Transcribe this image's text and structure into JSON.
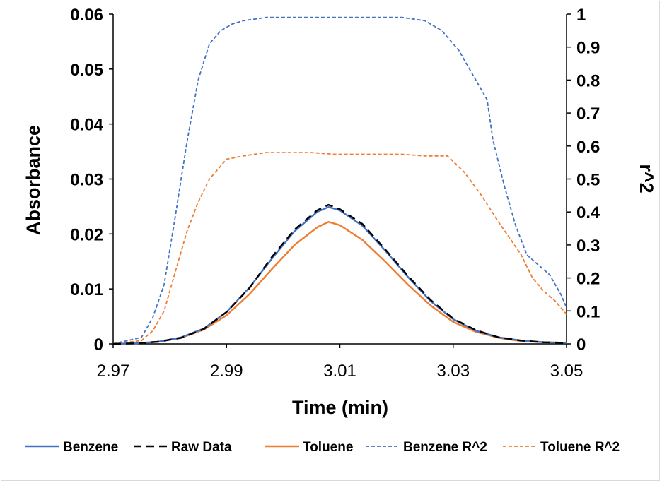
{
  "chart_data": {
    "type": "line",
    "xlabel": "Time (min)",
    "ylabel": "Absorbance",
    "y2label": "r^2",
    "xlim": [
      2.97,
      3.05
    ],
    "ylim": [
      0,
      0.06
    ],
    "y2lim": [
      0,
      1
    ],
    "x_ticks": [
      "2.97",
      "2.99",
      "3.01",
      "3.03",
      "3.05"
    ],
    "y_ticks": [
      "0",
      "0.01",
      "0.02",
      "0.03",
      "0.04",
      "0.05",
      "0.06"
    ],
    "y2_ticks": [
      "0",
      "0.1",
      "0.2",
      "0.3",
      "0.4",
      "0.5",
      "0.6",
      "0.7",
      "0.8",
      "0.9",
      "1"
    ],
    "grid": false,
    "legend_position": "bottom",
    "series": [
      {
        "name": "Benzene",
        "axis": "left",
        "color": "#4472c4",
        "dash": "solid",
        "x": [
          2.97,
          2.974,
          2.978,
          2.982,
          2.986,
          2.99,
          2.994,
          2.998,
          3.002,
          3.006,
          3.008,
          3.01,
          3.014,
          3.018,
          3.022,
          3.026,
          3.03,
          3.034,
          3.038,
          3.042,
          3.046,
          3.05
        ],
        "y": [
          0.0,
          0.0001,
          0.0004,
          0.0012,
          0.0028,
          0.0058,
          0.0102,
          0.0155,
          0.0205,
          0.024,
          0.0249,
          0.0243,
          0.0215,
          0.017,
          0.0122,
          0.0078,
          0.0045,
          0.0024,
          0.0012,
          0.0006,
          0.0003,
          0.0002
        ]
      },
      {
        "name": "Raw Data",
        "axis": "left",
        "color": "#000000",
        "dash": "long-dash",
        "x": [
          2.97,
          2.974,
          2.978,
          2.982,
          2.986,
          2.99,
          2.994,
          2.998,
          3.002,
          3.006,
          3.008,
          3.01,
          3.014,
          3.018,
          3.022,
          3.026,
          3.03,
          3.034,
          3.038,
          3.042,
          3.046,
          3.05
        ],
        "y": [
          0.0,
          0.0001,
          0.0004,
          0.0011,
          0.0027,
          0.0058,
          0.0101,
          0.0158,
          0.0208,
          0.0243,
          0.0253,
          0.0245,
          0.0218,
          0.0172,
          0.0124,
          0.008,
          0.0046,
          0.0025,
          0.0012,
          0.0006,
          0.0003,
          0.0002
        ]
      },
      {
        "name": "Toluene",
        "axis": "left",
        "color": "#ed7d31",
        "dash": "solid",
        "x": [
          2.97,
          2.974,
          2.978,
          2.982,
          2.986,
          2.99,
          2.994,
          2.998,
          3.002,
          3.006,
          3.008,
          3.01,
          3.014,
          3.018,
          3.022,
          3.026,
          3.03,
          3.034,
          3.038,
          3.042,
          3.046,
          3.05
        ],
        "y": [
          0.0,
          0.0001,
          0.0004,
          0.0011,
          0.0026,
          0.0052,
          0.009,
          0.0136,
          0.018,
          0.0212,
          0.0222,
          0.0216,
          0.0189,
          0.015,
          0.0108,
          0.007,
          0.004,
          0.0022,
          0.0011,
          0.0005,
          0.0003,
          0.0002
        ]
      },
      {
        "name": "Benzene R^2",
        "axis": "right",
        "color": "#4472c4",
        "dash": "short-dash",
        "x": [
          2.97,
          2.975,
          2.977,
          2.979,
          2.981,
          2.983,
          2.985,
          2.987,
          2.989,
          2.991,
          2.993,
          2.997,
          3.001,
          3.005,
          3.009,
          3.013,
          3.017,
          3.021,
          3.025,
          3.028,
          3.031,
          3.034,
          3.036,
          3.037,
          3.039,
          3.041,
          3.043,
          3.045,
          3.047,
          3.049,
          3.05
        ],
        "y": [
          0.0,
          0.02,
          0.08,
          0.18,
          0.39,
          0.61,
          0.8,
          0.91,
          0.95,
          0.97,
          0.98,
          0.99,
          0.99,
          0.99,
          0.99,
          0.99,
          0.99,
          0.99,
          0.98,
          0.95,
          0.89,
          0.8,
          0.74,
          0.62,
          0.48,
          0.36,
          0.27,
          0.24,
          0.21,
          0.15,
          0.11
        ]
      },
      {
        "name": "Toluene R^2",
        "axis": "right",
        "color": "#ed7d31",
        "dash": "short-dash",
        "x": [
          2.97,
          2.975,
          2.977,
          2.979,
          2.981,
          2.983,
          2.985,
          2.987,
          2.99,
          2.993,
          2.997,
          3.001,
          3.005,
          3.009,
          3.013,
          3.017,
          3.021,
          3.025,
          3.029,
          3.032,
          3.035,
          3.038,
          3.04,
          3.042,
          3.044,
          3.046,
          3.048,
          3.05
        ],
        "y": [
          0.0,
          0.01,
          0.04,
          0.1,
          0.22,
          0.34,
          0.43,
          0.5,
          0.56,
          0.57,
          0.58,
          0.58,
          0.58,
          0.575,
          0.575,
          0.575,
          0.575,
          0.57,
          0.57,
          0.52,
          0.45,
          0.37,
          0.32,
          0.27,
          0.2,
          0.16,
          0.13,
          0.09
        ]
      }
    ]
  }
}
